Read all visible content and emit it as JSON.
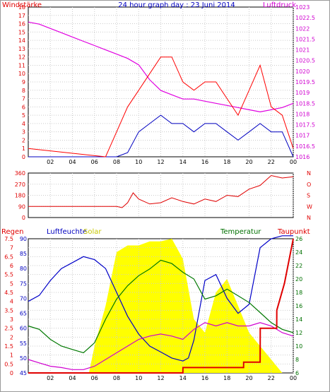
{
  "chart_data": [
    {
      "type": "line",
      "title": "24 hour graph day : 23 Juni 2014",
      "left_axis": {
        "label": "Windstärke",
        "range": [
          0,
          18
        ],
        "ticks": [
          "0",
          "1",
          "2",
          "3",
          "4",
          "5",
          "6",
          "7",
          "8",
          "9",
          "10",
          "11",
          "12",
          "13",
          "14",
          "15",
          "16",
          "17",
          "18"
        ],
        "color": "#e00000"
      },
      "right_axis": {
        "label": "Luftdruck",
        "range": [
          1016,
          1023
        ],
        "ticks": [
          "1016",
          "1016.5",
          "1017",
          "1017.5",
          "1018",
          "1018.5",
          "1019",
          "1019.5",
          "1020",
          "1020.5",
          "1021",
          "1021.5",
          "1022",
          "1022.5",
          "1023"
        ],
        "color": "#d000d0"
      },
      "x_ticks": [
        "02",
        "04",
        "06",
        "08",
        "10",
        "12",
        "14",
        "16",
        "18",
        "20",
        "22",
        "00"
      ],
      "series": [
        {
          "name": "Luftdruck",
          "color": "#e000e0",
          "x": [
            0,
            1,
            2,
            3,
            4,
            5,
            6,
            7,
            8,
            9,
            10,
            11,
            12,
            13,
            14,
            15,
            16,
            17,
            18,
            19,
            20,
            21,
            22,
            23,
            24
          ],
          "y": [
            1022.3,
            1022.2,
            1022.0,
            1021.8,
            1021.6,
            1021.4,
            1021.2,
            1021.0,
            1020.8,
            1020.6,
            1020.3,
            1019.6,
            1019.1,
            1018.9,
            1018.7,
            1018.7,
            1018.6,
            1018.5,
            1018.4,
            1018.3,
            1018.2,
            1018.1,
            1018.2,
            1018.3,
            1018.5
          ]
        },
        {
          "name": "wind_avg",
          "color": "#0000c0",
          "x": [
            0,
            7,
            8,
            9,
            10,
            11,
            12,
            13,
            14,
            15,
            16,
            17,
            18,
            19,
            20,
            21,
            22,
            23,
            24
          ],
          "y": [
            0,
            0,
            0,
            0.5,
            3,
            4,
            5,
            4,
            4,
            3,
            4,
            4,
            3,
            2,
            3,
            4,
            3,
            3,
            0
          ]
        },
        {
          "name": "wind_gust",
          "color": "#ff0000",
          "x": [
            0,
            7,
            8,
            9,
            10,
            11,
            12,
            13,
            14,
            15,
            16,
            17,
            18,
            19,
            20,
            21,
            22,
            23,
            24
          ],
          "y": [
            1,
            0,
            3,
            6,
            8,
            10,
            12,
            12,
            9,
            8,
            9,
            9,
            7,
            5,
            8,
            11,
            6,
            5,
            1
          ]
        }
      ]
    },
    {
      "type": "line",
      "title": "",
      "left_axis": {
        "range": [
          0,
          360
        ],
        "ticks": [
          "0",
          "90",
          "180",
          "270",
          "360"
        ],
        "color": "#e00000"
      },
      "right_axis": {
        "ticks": [
          "N",
          "W",
          "S",
          "O",
          "N"
        ],
        "color": "#e00000"
      },
      "x_ticks": [
        "02",
        "04",
        "06",
        "08",
        "10",
        "12",
        "14",
        "16",
        "18",
        "20",
        "22",
        "00"
      ],
      "series": [
        {
          "name": "Windrichtung",
          "color": "#e00000",
          "x": [
            0,
            2,
            4,
            6,
            8,
            8.5,
            9,
            9.5,
            10,
            11,
            12,
            13,
            14,
            15,
            16,
            17,
            18,
            19,
            20,
            21,
            22,
            23,
            24
          ],
          "y": [
            90,
            90,
            90,
            90,
            90,
            80,
            120,
            200,
            150,
            110,
            120,
            160,
            130,
            110,
            150,
            130,
            180,
            170,
            230,
            260,
            340,
            320,
            330
          ]
        }
      ]
    },
    {
      "type": "line",
      "title": "",
      "labels": {
        "regen": "Regen",
        "luftfeuchte": "Luftfeuchte",
        "solar": "Solar",
        "temperatur": "Temperatur",
        "taupunkt": "Taupunkt"
      },
      "left_axis_regen": {
        "range": [
          0,
          7.5
        ],
        "ticks": [
          "0",
          "0.5",
          "1",
          "1.5",
          "2",
          "2.5",
          "3",
          "3.5",
          "4",
          "4.5",
          "5",
          "5.5",
          "6",
          "6.5",
          "7",
          "7.5"
        ],
        "color": "#e00000"
      },
      "left_axis_humidity": {
        "range": [
          45,
          90
        ],
        "ticks": [
          "45",
          "50",
          "55",
          "60",
          "65",
          "70",
          "75",
          "80",
          "85",
          "90"
        ],
        "color": "#0000c0"
      },
      "right_axis_temp": {
        "range": [
          6,
          26
        ],
        "ticks": [
          "6",
          "8",
          "10",
          "12",
          "14",
          "16",
          "18",
          "20",
          "22",
          "24",
          "26"
        ],
        "color": "#007000"
      },
      "x_ticks": [
        "02",
        "04",
        "06",
        "08",
        "10",
        "12",
        "14",
        "16",
        "18",
        "20",
        "22",
        "00"
      ],
      "series": [
        {
          "name": "Luftfeuchte",
          "color": "#0000c8",
          "x": [
            0,
            1,
            2,
            3,
            4,
            5,
            6,
            7,
            8,
            9,
            10,
            11,
            12,
            13,
            14,
            14.5,
            15,
            16,
            17,
            18,
            19,
            20,
            21,
            22,
            23,
            24
          ],
          "y": [
            69,
            71,
            76,
            80,
            82,
            84,
            83,
            80,
            72,
            64,
            58,
            54,
            52,
            50,
            49,
            50,
            56,
            76,
            78,
            70,
            65,
            68,
            87,
            90,
            91,
            91
          ]
        },
        {
          "name": "Temperatur",
          "color": "#007800",
          "x": [
            0,
            1,
            2,
            3,
            4,
            5,
            6,
            7,
            8,
            9,
            10,
            11,
            12,
            13,
            14,
            15,
            16,
            17,
            18,
            19,
            20,
            21,
            22,
            23,
            24
          ],
          "y": [
            13.0,
            12.5,
            11.0,
            10.0,
            9.5,
            9.0,
            10.5,
            14.0,
            17.0,
            19.0,
            20.5,
            21.5,
            22.8,
            22.3,
            21.0,
            20.0,
            17.0,
            17.5,
            18.5,
            17.5,
            16.5,
            15.0,
            13.5,
            12.5,
            12.0
          ]
        },
        {
          "name": "Taupunkt",
          "color": "#d000d0",
          "x": [
            0,
            1,
            2,
            3,
            4,
            5,
            6,
            7,
            8,
            9,
            10,
            11,
            12,
            13,
            14,
            15,
            16,
            17,
            18,
            19,
            20,
            21,
            22,
            23,
            24
          ],
          "y": [
            8.0,
            7.5,
            7.0,
            6.8,
            6.5,
            6.5,
            7.0,
            8.0,
            9.0,
            10.0,
            11.0,
            11.5,
            11.8,
            11.5,
            11.0,
            12.5,
            13.5,
            13.0,
            13.5,
            13.0,
            13.0,
            13.5,
            13.0,
            12.0,
            11.5
          ]
        },
        {
          "name": "Regen",
          "color": "#e00000",
          "x": [
            0,
            14,
            14.01,
            19.5,
            19.51,
            21,
            21.01,
            22.5,
            22.51,
            23.2,
            24
          ],
          "y": [
            0,
            0,
            0.3,
            0.3,
            0.6,
            0.6,
            2.5,
            2.5,
            3.5,
            5.0,
            7.5
          ]
        },
        {
          "name": "Solar",
          "color": "#ffff00",
          "x": [
            0,
            5.5,
            6,
            7,
            8,
            9,
            10,
            11,
            12,
            13,
            14,
            15,
            16,
            17,
            18,
            19,
            20,
            21,
            22,
            23,
            24
          ],
          "y": [
            0,
            0,
            0.2,
            0.5,
            0.9,
            0.95,
            0.95,
            0.98,
            0.98,
            1.0,
            0.85,
            0.4,
            0.3,
            0.6,
            0.7,
            0.5,
            0.3,
            0.2,
            0.1,
            0,
            0
          ]
        }
      ]
    }
  ]
}
